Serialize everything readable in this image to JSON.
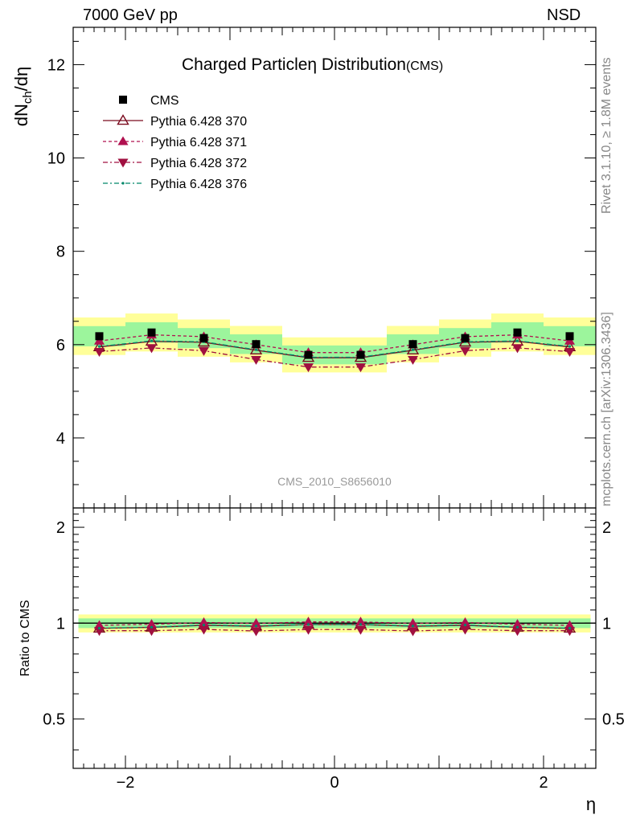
{
  "header": {
    "left": "7000 GeV pp",
    "right": "NSD"
  },
  "side": {
    "rivet": "Rivet 3.1.10, ≥ 1.8M events",
    "mcplots": "mcplots.cern.ch [arXiv:1306.3436]"
  },
  "colors": {
    "cms": "#000000",
    "p370": "#7a0a1e",
    "p371": "#b0104f",
    "p372": "#a01040",
    "p376": "#00886a",
    "band_inner": "#9cf59c",
    "band_outer": "#ffff99"
  },
  "chart_data": [
    {
      "type": "scatter",
      "title": "Charged Particleη Distribution",
      "title_suffix": "(CMS)",
      "ylabel": "dN_ch/dη",
      "analysis_label": "CMS_2010_S8656010",
      "xlim": [
        -2.5,
        2.5
      ],
      "ylim": [
        2.5,
        12.8
      ],
      "yticks": [
        4,
        6,
        8,
        10,
        12
      ],
      "x": [
        -2.25,
        -1.75,
        -1.25,
        -0.75,
        -0.25,
        0.25,
        0.75,
        1.25,
        1.75,
        2.25
      ],
      "series": [
        {
          "name": "CMS",
          "values": [
            6.18,
            6.26,
            6.14,
            6.01,
            5.78,
            5.78,
            6.01,
            6.14,
            6.26,
            6.18
          ]
        },
        {
          "name": "Pythia 6.428 370",
          "values": [
            5.95,
            6.07,
            6.05,
            5.88,
            5.72,
            5.72,
            5.88,
            6.05,
            6.07,
            5.95
          ]
        },
        {
          "name": "Pythia 6.428 371",
          "values": [
            6.08,
            6.21,
            6.17,
            6.0,
            5.83,
            5.83,
            6.0,
            6.17,
            6.21,
            6.08
          ]
        },
        {
          "name": "Pythia 6.428 372",
          "values": [
            5.85,
            5.93,
            5.87,
            5.68,
            5.52,
            5.52,
            5.68,
            5.87,
            5.93,
            5.85
          ]
        },
        {
          "name": "Pythia 6.428 376",
          "values": [
            5.96,
            6.08,
            6.06,
            5.89,
            5.73,
            5.73,
            5.89,
            6.06,
            6.08,
            5.96
          ]
        }
      ]
    },
    {
      "type": "scatter",
      "ylabel": "Ratio to CMS",
      "xlabel": "η",
      "xlim": [
        -2.5,
        2.5
      ],
      "xticks": [
        -2,
        0,
        2
      ],
      "ylim": [
        0.35,
        2.3
      ],
      "yticks": [
        0.5,
        1,
        2
      ],
      "band_inner": 0.035,
      "band_outer": 0.065,
      "x": [
        -2.25,
        -1.75,
        -1.25,
        -0.75,
        -0.25,
        0.25,
        0.75,
        1.25,
        1.75,
        2.25
      ],
      "series": [
        {
          "name": "Pythia 6.428 370",
          "values": [
            0.963,
            0.97,
            0.985,
            0.978,
            0.99,
            0.99,
            0.978,
            0.985,
            0.97,
            0.963
          ]
        },
        {
          "name": "Pythia 6.428 371",
          "values": [
            0.984,
            0.992,
            1.005,
            0.998,
            1.009,
            1.009,
            0.998,
            1.005,
            0.992,
            0.984
          ]
        },
        {
          "name": "Pythia 6.428 372",
          "values": [
            0.947,
            0.947,
            0.956,
            0.945,
            0.955,
            0.955,
            0.945,
            0.956,
            0.947,
            0.947
          ]
        },
        {
          "name": "Pythia 6.428 376",
          "values": [
            0.964,
            0.971,
            0.987,
            0.98,
            0.991,
            0.991,
            0.98,
            0.987,
            0.971,
            0.964
          ]
        }
      ]
    }
  ]
}
